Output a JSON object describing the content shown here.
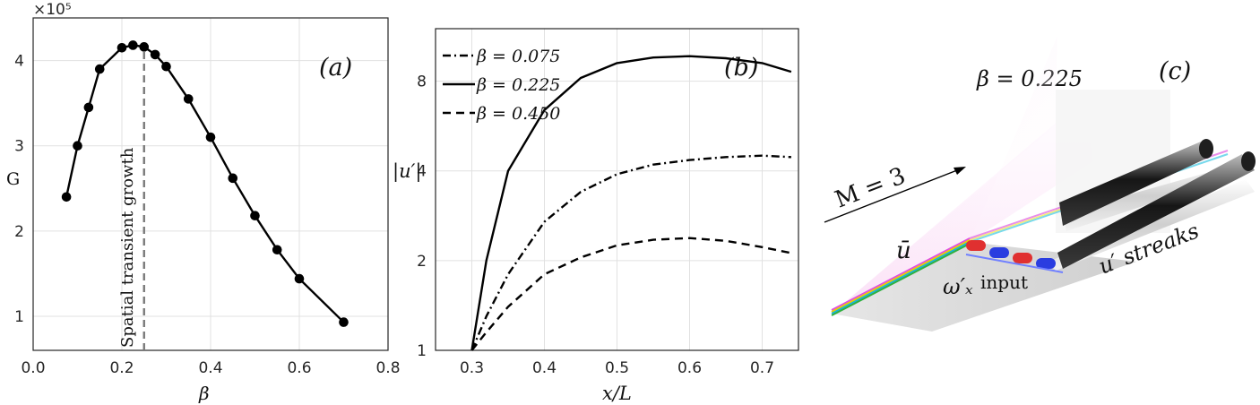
{
  "chart_data": [
    {
      "panel_label": "(a)",
      "type": "line",
      "ylabel": "G",
      "xlabel": "β",
      "exponent_label": "×10⁵",
      "xlim": [
        0.0,
        0.8
      ],
      "ylim": [
        0.6,
        4.5
      ],
      "xticks": [
        "0.0",
        "0.2",
        "0.4",
        "0.6",
        "0.8"
      ],
      "yticks": [
        "1",
        "2",
        "3",
        "4"
      ],
      "grid": true,
      "x": [
        0.075,
        0.1,
        0.125,
        0.15,
        0.2,
        0.225,
        0.25,
        0.275,
        0.3,
        0.35,
        0.4,
        0.45,
        0.5,
        0.55,
        0.6,
        0.7
      ],
      "y": [
        2.4,
        3.0,
        3.45,
        3.9,
        4.15,
        4.18,
        4.16,
        4.07,
        3.93,
        3.55,
        3.1,
        2.62,
        2.18,
        1.78,
        1.44,
        0.93
      ],
      "marker": "circle",
      "vline_x": 0.25,
      "vline_label": "Spatial transient growth"
    },
    {
      "panel_label": "(b)",
      "type": "line",
      "ylabel": "|u′|",
      "xlabel": "x/L",
      "xlim": [
        0.25,
        0.75
      ],
      "ylim": [
        1,
        12
      ],
      "xticks": [
        "0.3",
        "0.4",
        "0.5",
        "0.6",
        "0.7"
      ],
      "yticks": [
        "1",
        "2",
        "4",
        "8"
      ],
      "grid": true,
      "legend_position": "top-left",
      "x": [
        0.3,
        0.32,
        0.35,
        0.4,
        0.45,
        0.5,
        0.55,
        0.6,
        0.65,
        0.7,
        0.74
      ],
      "series": [
        {
          "name": "β = 0.075",
          "style": "dash-dot",
          "values": [
            1.0,
            1.3,
            1.8,
            2.7,
            3.4,
            3.9,
            4.2,
            4.35,
            4.45,
            4.5,
            4.45
          ]
        },
        {
          "name": "β = 0.225",
          "style": "solid",
          "values": [
            1.0,
            2.0,
            4.0,
            6.4,
            8.2,
            9.2,
            9.6,
            9.7,
            9.55,
            9.2,
            8.6
          ]
        },
        {
          "name": "β = 0.450",
          "style": "dashed",
          "values": [
            1.0,
            1.15,
            1.4,
            1.8,
            2.05,
            2.25,
            2.35,
            2.38,
            2.33,
            2.22,
            2.12
          ]
        }
      ]
    }
  ],
  "panel_c": {
    "label": "(c)",
    "beta_label": "β = 0.225",
    "mach_label": "M = 3",
    "ubar_label": "ū",
    "omega_label": "ω′ₓ",
    "input_label": "input",
    "streaks_label": "u′ streaks",
    "colors": {
      "red": "#e03030",
      "blue": "#2a3de0",
      "streak_dark": "#1a1a1a",
      "plate": "#d7d7d7"
    }
  }
}
